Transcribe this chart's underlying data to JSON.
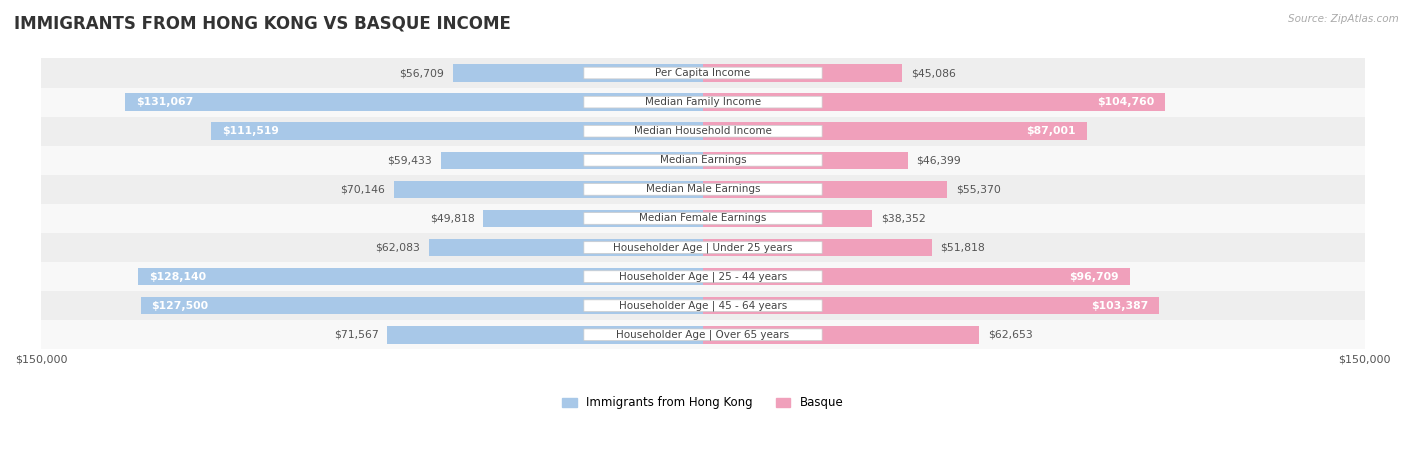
{
  "title": "IMMIGRANTS FROM HONG KONG VS BASQUE INCOME",
  "source": "Source: ZipAtlas.com",
  "categories": [
    "Per Capita Income",
    "Median Family Income",
    "Median Household Income",
    "Median Earnings",
    "Median Male Earnings",
    "Median Female Earnings",
    "Householder Age | Under 25 years",
    "Householder Age | 25 - 44 years",
    "Householder Age | 45 - 64 years",
    "Householder Age | Over 65 years"
  ],
  "hk_values": [
    56709,
    131067,
    111519,
    59433,
    70146,
    49818,
    62083,
    128140,
    127500,
    71567
  ],
  "basque_values": [
    45086,
    104760,
    87001,
    46399,
    55370,
    38352,
    51818,
    96709,
    103387,
    62653
  ],
  "hk_color": "#a8c8e8",
  "basque_color": "#f0a0bb",
  "bg_row_even": "#eeeeee",
  "bg_row_odd": "#f8f8f8",
  "max_value": 150000,
  "hk_label": "Immigrants from Hong Kong",
  "basque_label": "Basque",
  "title_fontsize": 12,
  "bar_height": 0.6,
  "value_fontsize": 7.8,
  "cat_fontsize": 7.5,
  "tick_fontsize": 8,
  "source_fontsize": 7.5,
  "legend_fontsize": 8.5,
  "hk_threshold": 85000,
  "bq_threshold": 85000,
  "text_inside_color": "#ffffff",
  "text_outside_color": "#555555"
}
